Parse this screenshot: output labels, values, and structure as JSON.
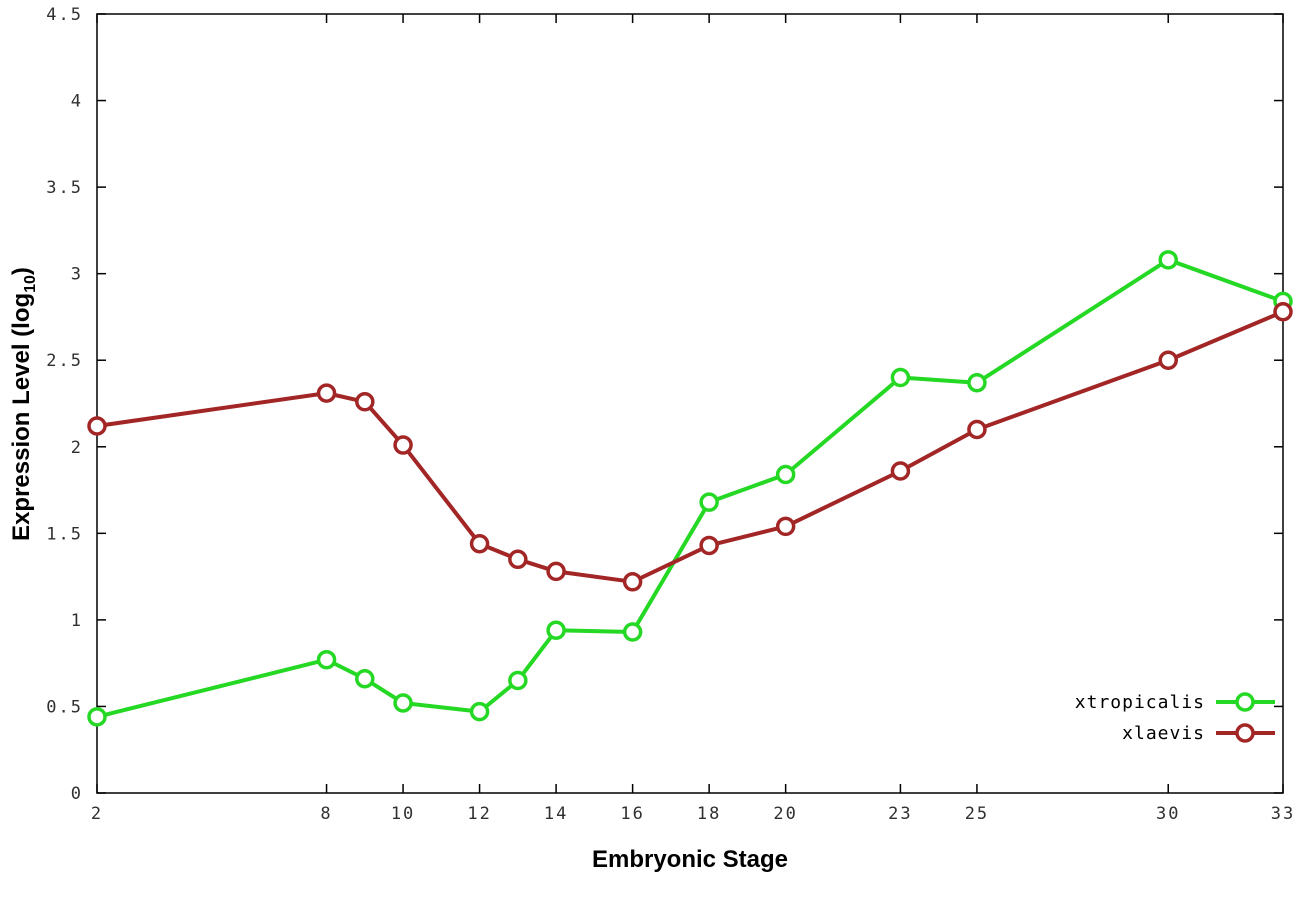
{
  "chart_data": {
    "type": "line",
    "title": "",
    "xlabel": "Embryonic Stage",
    "ylabel": "Expression Level (log10)",
    "ylabel_parts": {
      "prefix": "Expression Level (log",
      "sub": "10",
      "suffix": ")"
    },
    "xlim": [
      2,
      33
    ],
    "ylim": [
      0,
      4.5
    ],
    "xticks": [
      2,
      8,
      10,
      12,
      14,
      16,
      18,
      20,
      23,
      25,
      30,
      33
    ],
    "yticks": [
      0,
      0.5,
      1,
      1.5,
      2,
      2.5,
      3,
      3.5,
      4,
      4.5
    ],
    "grid": false,
    "legend_position": "bottom-right-inside",
    "marker": "open-circle",
    "axis_color": "#000000",
    "background": "#ffffff",
    "x": [
      2,
      8,
      9,
      10,
      12,
      13,
      14,
      16,
      18,
      20,
      23,
      25,
      30,
      33
    ],
    "series": [
      {
        "name": "xtropicalis",
        "color": "#24d824",
        "values": [
          0.44,
          0.77,
          0.66,
          0.52,
          0.47,
          0.65,
          0.94,
          0.93,
          1.68,
          1.84,
          2.4,
          2.37,
          3.08,
          2.84
        ]
      },
      {
        "name": "xlaevis",
        "color": "#a32626",
        "values": [
          2.12,
          2.31,
          2.26,
          2.01,
          1.44,
          1.35,
          1.28,
          1.22,
          1.43,
          1.54,
          1.86,
          2.1,
          2.5,
          2.78
        ]
      }
    ]
  }
}
